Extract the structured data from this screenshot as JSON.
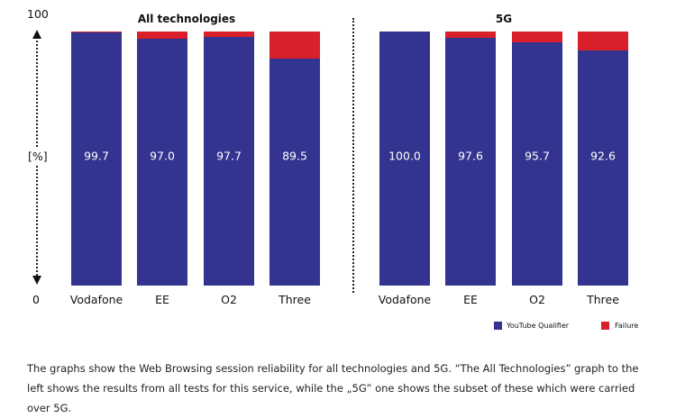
{
  "chart_data": [
    {
      "type": "bar",
      "stacked": true,
      "title": "All technologies",
      "categories": [
        "Vodafone",
        "EE",
        "O2",
        "Three"
      ],
      "series": [
        {
          "name": "YouTube Qualifier",
          "values": [
            99.7,
            97.0,
            97.7,
            89.5
          ]
        },
        {
          "name": "Failure",
          "values": [
            0.3,
            3.0,
            2.3,
            10.5
          ]
        }
      ],
      "ylabel": "[%]",
      "ylim": [
        0,
        100
      ],
      "yticks": [
        "0",
        "100"
      ]
    },
    {
      "type": "bar",
      "stacked": true,
      "title": "5G",
      "categories": [
        "Vodafone",
        "EE",
        "O2",
        "Three"
      ],
      "series": [
        {
          "name": "YouTube Qualifier",
          "values": [
            100.0,
            97.6,
            95.7,
            92.6
          ]
        },
        {
          "name": "Failure",
          "values": [
            0.0,
            2.4,
            4.3,
            7.4
          ]
        }
      ],
      "ylim": [
        0,
        100
      ]
    }
  ],
  "colors": {
    "qualifier": "#32348f",
    "failure": "#d9202a"
  },
  "legend": {
    "items": [
      "YouTube Qualifier",
      "Failure"
    ],
    "placement": "bottom-right"
  },
  "labels": {
    "c0": [
      "99.7",
      "97.0",
      "97.7",
      "89.5"
    ],
    "c1": [
      "100.0",
      "97.6",
      "95.7",
      "92.6"
    ]
  },
  "caption": "The graphs show the Web Browsing session reliability for all technologies and 5G. “The All Technologies” graph to the left shows the results from all tests for this service, while the „5G” one shows the subset of these which were carried over 5G."
}
